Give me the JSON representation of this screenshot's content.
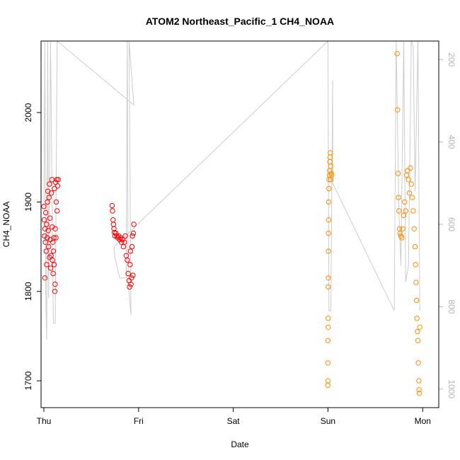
{
  "chart_data": {
    "type": "scatter",
    "title": "ATOM2 Northeast_Pacific_1 CH4_NOAA",
    "xlabel": "Date",
    "ylabel": "CH4_NOAA",
    "x_ticks": [
      "Thu",
      "Fri",
      "Sat",
      "Sun",
      "Mon"
    ],
    "xlim": [
      -0.03,
      4.17
    ],
    "y_ticks": [
      1700,
      1800,
      1900,
      2000
    ],
    "ylim": [
      1670,
      2080
    ],
    "y2_ticks": [
      200,
      400,
      600,
      800,
      1000
    ],
    "y2lim": [
      1045,
      155
    ],
    "grid": false,
    "colors": {
      "series1": "#ff0000",
      "series2": "#ff8c00",
      "secondary_line": "#cccccc",
      "secondary_axis": "#b4b4b4",
      "axis": "#000000"
    },
    "series": [
      {
        "axis": "left",
        "color": "#ff0000",
        "points": [
          [
            0.0,
            1895
          ],
          [
            0.004,
            1880
          ],
          [
            0.008,
            1862
          ],
          [
            0.01,
            1815
          ],
          [
            0.012,
            1870
          ],
          [
            0.016,
            1855
          ],
          [
            0.02,
            1888
          ],
          [
            0.024,
            1845
          ],
          [
            0.028,
            1875
          ],
          [
            0.03,
            1830
          ],
          [
            0.035,
            1860
          ],
          [
            0.038,
            1900
          ],
          [
            0.042,
            1912
          ],
          [
            0.046,
            1868
          ],
          [
            0.05,
            1850
          ],
          [
            0.054,
            1905
          ],
          [
            0.058,
            1920
          ],
          [
            0.06,
            1838
          ],
          [
            0.064,
            1882
          ],
          [
            0.068,
            1858
          ],
          [
            0.072,
            1826
          ],
          [
            0.076,
            1840
          ],
          [
            0.08,
            1910
          ],
          [
            0.084,
            1925
          ],
          [
            0.088,
            1872
          ],
          [
            0.09,
            1835
          ],
          [
            0.094,
            1855
          ],
          [
            0.098,
            1820
          ],
          [
            0.1,
            1845
          ],
          [
            0.105,
            1860
          ],
          [
            0.108,
            1830
          ],
          [
            0.112,
            1915
          ],
          [
            0.115,
            1800
          ],
          [
            0.118,
            1808
          ],
          [
            0.12,
            1870
          ],
          [
            0.124,
            1922
          ],
          [
            0.128,
            1860
          ],
          [
            0.13,
            1900
          ],
          [
            0.135,
            1925
          ],
          [
            0.14,
            1890
          ],
          [
            0.145,
            1918
          ],
          [
            0.15,
            1925
          ]
        ]
      },
      {
        "axis": "left",
        "color": "#ff0000",
        "points": [
          [
            0.72,
            1896
          ],
          [
            0.725,
            1890
          ],
          [
            0.73,
            1880
          ],
          [
            0.735,
            1875
          ],
          [
            0.74,
            1870
          ],
          [
            0.745,
            1866
          ],
          [
            0.75,
            1862
          ],
          [
            0.76,
            1865
          ],
          [
            0.77,
            1862
          ],
          [
            0.78,
            1860
          ],
          [
            0.79,
            1862
          ],
          [
            0.8,
            1858
          ],
          [
            0.81,
            1860
          ],
          [
            0.82,
            1855
          ],
          [
            0.83,
            1858
          ],
          [
            0.84,
            1850
          ],
          [
            0.85,
            1855
          ],
          [
            0.86,
            1862
          ],
          [
            0.87,
            1840
          ],
          [
            0.88,
            1835
          ],
          [
            0.89,
            1820
          ],
          [
            0.9,
            1812
          ],
          [
            0.905,
            1805
          ],
          [
            0.91,
            1830
          ],
          [
            0.915,
            1845
          ],
          [
            0.92,
            1808
          ],
          [
            0.925,
            1815
          ],
          [
            0.93,
            1850
          ],
          [
            0.935,
            1862
          ],
          [
            0.94,
            1818
          ],
          [
            0.945,
            1865
          ],
          [
            0.95,
            1875
          ]
        ]
      },
      {
        "axis": "left",
        "color": "#ff8c00",
        "points": [
          [
            2.998,
            1695
          ],
          [
            3.0,
            1700
          ],
          [
            3.0,
            1720
          ],
          [
            3.0,
            1745
          ],
          [
            3.002,
            1760
          ],
          [
            3.002,
            1770
          ],
          [
            3.003,
            1805
          ],
          [
            3.004,
            1815
          ],
          [
            3.005,
            1845
          ],
          [
            3.006,
            1865
          ],
          [
            3.007,
            1880
          ],
          [
            3.008,
            1900
          ],
          [
            3.01,
            1915
          ],
          [
            3.012,
            1925
          ],
          [
            3.015,
            1930
          ],
          [
            3.018,
            1935
          ],
          [
            3.02,
            1945
          ],
          [
            3.022,
            1950
          ],
          [
            3.025,
            1955
          ],
          [
            3.028,
            1940
          ],
          [
            3.03,
            1925
          ],
          [
            3.035,
            1932
          ],
          [
            3.04,
            1930
          ]
        ]
      },
      {
        "axis": "left",
        "color": "#ff8c00",
        "points": [
          [
            3.73,
            2066
          ],
          [
            3.735,
            2003
          ],
          [
            3.74,
            1932
          ],
          [
            3.745,
            1905
          ],
          [
            3.75,
            1890
          ],
          [
            3.755,
            1870
          ],
          [
            3.76,
            1865
          ],
          [
            3.77,
            1862
          ],
          [
            3.78,
            1860
          ],
          [
            3.79,
            1870
          ],
          [
            3.8,
            1885
          ],
          [
            3.81,
            1900
          ],
          [
            3.82,
            1890
          ],
          [
            3.83,
            1930
          ],
          [
            3.84,
            1935
          ],
          [
            3.85,
            1925
          ],
          [
            3.86,
            1910
          ],
          [
            3.87,
            1938
          ],
          [
            3.88,
            1920
          ],
          [
            3.89,
            1905
          ],
          [
            3.9,
            1890
          ],
          [
            3.91,
            1870
          ],
          [
            3.92,
            1850
          ],
          [
            3.925,
            1830
          ],
          [
            3.93,
            1810
          ],
          [
            3.935,
            1790
          ],
          [
            3.94,
            1770
          ],
          [
            3.945,
            1755
          ],
          [
            3.95,
            1745
          ],
          [
            3.955,
            1720
          ],
          [
            3.96,
            1700
          ],
          [
            3.962,
            1690
          ],
          [
            3.965,
            1686
          ],
          [
            3.97,
            1760
          ]
        ]
      }
    ],
    "secondary_series": {
      "axis": "right",
      "color": "#cccccc",
      "points": [
        [
          0.0,
          560
        ],
        [
          0.01,
          155
        ],
        [
          0.02,
          780
        ],
        [
          0.03,
          880
        ],
        [
          0.04,
          155
        ],
        [
          0.05,
          780
        ],
        [
          0.07,
          155
        ],
        [
          0.1,
          840
        ],
        [
          0.12,
          840
        ],
        [
          0.14,
          155
        ],
        [
          0.95,
          310
        ],
        [
          0.9,
          155
        ],
        [
          0.92,
          820
        ],
        [
          0.89,
          740
        ],
        [
          0.88,
          155
        ],
        [
          0.87,
          730
        ],
        [
          0.8,
          730
        ],
        [
          0.75,
          680
        ],
        [
          0.74,
          655
        ],
        [
          3.0,
          155
        ],
        [
          3.01,
          810
        ],
        [
          3.03,
          810
        ],
        [
          3.05,
          250
        ],
        [
          3.05,
          500
        ],
        [
          3.7,
          810
        ],
        [
          3.72,
          155
        ],
        [
          3.75,
          580
        ],
        [
          3.77,
          700
        ],
        [
          3.8,
          155
        ],
        [
          3.82,
          740
        ],
        [
          3.85,
          700
        ],
        [
          3.88,
          155
        ],
        [
          3.9,
          170
        ],
        [
          3.92,
          520
        ],
        [
          3.95,
          155
        ],
        [
          3.97,
          810
        ]
      ]
    }
  }
}
